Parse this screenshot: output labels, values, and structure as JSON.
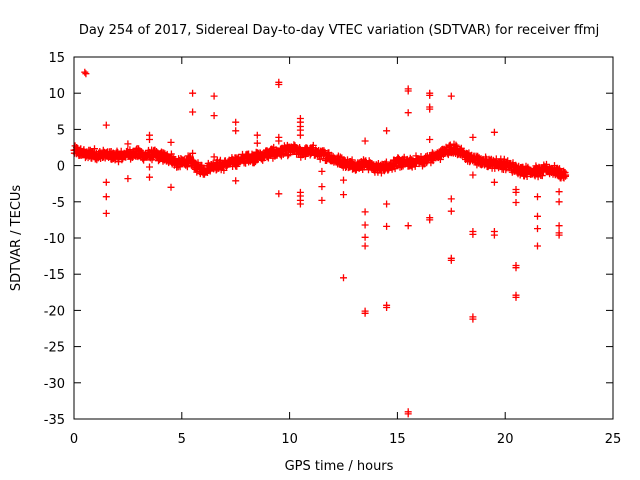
{
  "chart_data": {
    "type": "scatter",
    "title": "Day 254 of 2017, Sidereal Day-to-day VTEC variation (SDTVAR) for receiver ffmj",
    "xlabel": "GPS time / hours",
    "ylabel": "SDTVAR / TECUs",
    "xlim": [
      0,
      25
    ],
    "ylim": [
      -35,
      15
    ],
    "xticks": [
      0,
      5,
      10,
      15,
      20,
      25
    ],
    "yticks": [
      15,
      10,
      5,
      0,
      -5,
      -10,
      -15,
      -20,
      -25,
      -30,
      -35
    ],
    "grid": false,
    "legend": "none",
    "marker": "plus",
    "series": [
      {
        "name": "SDTVAR",
        "color": "#ff0000",
        "band": [
          [
            0.0,
            2.0
          ],
          [
            0.3,
            1.8
          ],
          [
            0.6,
            1.5
          ],
          [
            0.9,
            1.7
          ],
          [
            1.2,
            1.4
          ],
          [
            1.5,
            1.5
          ],
          [
            1.8,
            1.2
          ],
          [
            2.1,
            1.3
          ],
          [
            2.4,
            1.5
          ],
          [
            2.7,
            1.7
          ],
          [
            3.0,
            1.6
          ],
          [
            3.3,
            1.4
          ],
          [
            3.6,
            1.5
          ],
          [
            3.9,
            1.3
          ],
          [
            4.2,
            1.1
          ],
          [
            4.5,
            1.0
          ],
          [
            4.8,
            0.2
          ],
          [
            5.1,
            0.5
          ],
          [
            5.4,
            0.7
          ],
          [
            5.7,
            -0.3
          ],
          [
            6.0,
            -0.6
          ],
          [
            6.3,
            -0.2
          ],
          [
            6.6,
            0.1
          ],
          [
            6.9,
            0.0
          ],
          [
            7.2,
            0.3
          ],
          [
            7.5,
            0.6
          ],
          [
            7.8,
            0.9
          ],
          [
            8.1,
            1.2
          ],
          [
            8.4,
            1.1
          ],
          [
            8.7,
            1.4
          ],
          [
            9.0,
            1.6
          ],
          [
            9.3,
            1.8
          ],
          [
            9.6,
            1.9
          ],
          [
            9.9,
            2.1
          ],
          [
            10.2,
            2.2
          ],
          [
            10.5,
            1.8
          ],
          [
            10.8,
            2.0
          ],
          [
            11.1,
            2.1
          ],
          [
            11.4,
            1.6
          ],
          [
            11.7,
            1.4
          ],
          [
            12.0,
            1.0
          ],
          [
            12.3,
            0.6
          ],
          [
            12.6,
            0.3
          ],
          [
            12.9,
            0.2
          ],
          [
            13.2,
            0.0
          ],
          [
            13.5,
            0.3
          ],
          [
            13.8,
            -0.1
          ],
          [
            14.1,
            -0.4
          ],
          [
            14.4,
            -0.2
          ],
          [
            14.7,
            0.1
          ],
          [
            15.0,
            0.4
          ],
          [
            15.3,
            0.5
          ],
          [
            15.6,
            0.3
          ],
          [
            15.9,
            0.7
          ],
          [
            16.2,
            0.6
          ],
          [
            16.5,
            1.0
          ],
          [
            16.8,
            1.3
          ],
          [
            17.1,
            1.8
          ],
          [
            17.4,
            2.2
          ],
          [
            17.7,
            2.3
          ],
          [
            18.0,
            1.6
          ],
          [
            18.3,
            1.2
          ],
          [
            18.6,
            0.8
          ],
          [
            18.9,
            0.5
          ],
          [
            19.2,
            0.5
          ],
          [
            19.5,
            0.3
          ],
          [
            19.8,
            0.3
          ],
          [
            20.1,
            0.0
          ],
          [
            20.4,
            -0.3
          ],
          [
            20.7,
            -0.6
          ],
          [
            21.0,
            -0.8
          ],
          [
            21.3,
            -0.7
          ],
          [
            21.6,
            -0.9
          ],
          [
            21.9,
            -0.5
          ],
          [
            22.2,
            -0.6
          ],
          [
            22.5,
            -1.0
          ],
          [
            22.8,
            -1.3
          ]
        ],
        "outliers": [
          [
            0.5,
            12.9
          ],
          [
            0.55,
            12.7
          ],
          [
            1.5,
            5.6
          ],
          [
            1.5,
            -2.3
          ],
          [
            1.5,
            -4.3
          ],
          [
            1.5,
            -6.6
          ],
          [
            2.5,
            3.0
          ],
          [
            2.5,
            -1.8
          ],
          [
            3.5,
            4.2
          ],
          [
            3.5,
            3.6
          ],
          [
            3.5,
            -0.2
          ],
          [
            3.5,
            -1.6
          ],
          [
            4.5,
            3.2
          ],
          [
            4.5,
            -3.0
          ],
          [
            5.5,
            10.0
          ],
          [
            5.5,
            7.4
          ],
          [
            5.5,
            1.7
          ],
          [
            6.5,
            9.6
          ],
          [
            6.5,
            6.9
          ],
          [
            6.5,
            1.2
          ],
          [
            7.5,
            6.0
          ],
          [
            7.5,
            4.8
          ],
          [
            7.5,
            -2.1
          ],
          [
            8.5,
            4.2
          ],
          [
            8.5,
            3.1
          ],
          [
            9.5,
            11.5
          ],
          [
            9.5,
            11.2
          ],
          [
            9.5,
            3.9
          ],
          [
            9.5,
            3.4
          ],
          [
            9.5,
            -3.9
          ],
          [
            10.5,
            6.5
          ],
          [
            10.5,
            6.0
          ],
          [
            10.5,
            5.4
          ],
          [
            10.5,
            4.9
          ],
          [
            10.5,
            4.2
          ],
          [
            10.5,
            -3.7
          ],
          [
            10.5,
            -4.2
          ],
          [
            10.5,
            -4.8
          ],
          [
            10.5,
            -5.3
          ],
          [
            11.5,
            -0.8
          ],
          [
            11.5,
            -2.9
          ],
          [
            11.5,
            -4.8
          ],
          [
            12.5,
            -2.0
          ],
          [
            12.5,
            -4.0
          ],
          [
            12.5,
            -15.5
          ],
          [
            13.5,
            3.4
          ],
          [
            13.5,
            -6.4
          ],
          [
            13.5,
            -8.2
          ],
          [
            13.5,
            -9.9
          ],
          [
            13.5,
            -11.1
          ],
          [
            13.5,
            -20.1
          ],
          [
            13.5,
            -20.4
          ],
          [
            14.5,
            4.8
          ],
          [
            14.5,
            -5.3
          ],
          [
            14.5,
            -8.4
          ],
          [
            14.5,
            -19.3
          ],
          [
            14.5,
            -19.6
          ],
          [
            15.5,
            10.6
          ],
          [
            15.5,
            10.3
          ],
          [
            15.5,
            7.3
          ],
          [
            15.5,
            -8.3
          ],
          [
            15.5,
            -34.0
          ],
          [
            15.5,
            -34.3
          ],
          [
            16.5,
            10.0
          ],
          [
            16.5,
            9.7
          ],
          [
            16.5,
            8.1
          ],
          [
            16.5,
            7.8
          ],
          [
            16.5,
            3.6
          ],
          [
            16.5,
            -7.2
          ],
          [
            16.5,
            -7.5
          ],
          [
            17.5,
            9.6
          ],
          [
            17.5,
            -4.6
          ],
          [
            17.5,
            -6.3
          ],
          [
            17.5,
            -12.8
          ],
          [
            17.5,
            -13.1
          ],
          [
            18.5,
            3.9
          ],
          [
            18.5,
            -1.3
          ],
          [
            18.5,
            -9.1
          ],
          [
            18.5,
            -9.5
          ],
          [
            18.5,
            -20.9
          ],
          [
            18.5,
            -21.2
          ],
          [
            19.5,
            4.6
          ],
          [
            19.5,
            -2.3
          ],
          [
            19.5,
            -9.1
          ],
          [
            19.5,
            -9.6
          ],
          [
            20.5,
            -3.3
          ],
          [
            20.5,
            -3.7
          ],
          [
            20.5,
            -5.1
          ],
          [
            20.5,
            -13.8
          ],
          [
            20.5,
            -14.1
          ],
          [
            20.5,
            -17.9
          ],
          [
            20.5,
            -18.2
          ],
          [
            21.5,
            -4.3
          ],
          [
            21.5,
            -7.0
          ],
          [
            21.5,
            -8.7
          ],
          [
            21.5,
            -11.1
          ],
          [
            22.5,
            -3.6
          ],
          [
            22.5,
            -5.0
          ],
          [
            22.5,
            -8.3
          ],
          [
            22.5,
            -9.3
          ],
          [
            22.5,
            -9.6
          ]
        ]
      }
    ]
  }
}
